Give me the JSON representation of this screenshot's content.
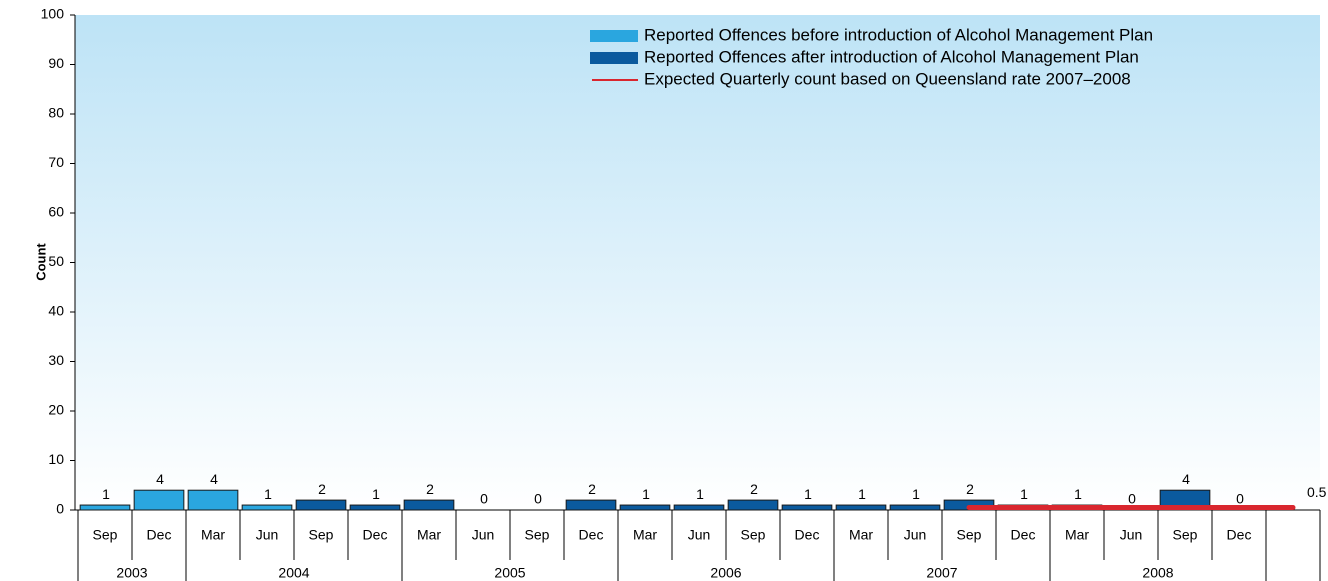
{
  "chart_data": {
    "type": "bar",
    "y_label": "Count",
    "categories": [
      "Sep",
      "Dec",
      "Mar",
      "Jun",
      "Sep",
      "Dec",
      "Mar",
      "Jun",
      "Sep",
      "Dec",
      "Mar",
      "Jun",
      "Sep",
      "Dec",
      "Mar",
      "Jun",
      "Sep",
      "Dec",
      "Mar",
      "Jun",
      "Sep",
      "Dec",
      null
    ],
    "year_groups": [
      {
        "label": "2003",
        "count": 2
      },
      {
        "label": "2004",
        "count": 4
      },
      {
        "label": "2005",
        "count": 4
      },
      {
        "label": "2006",
        "count": 4
      },
      {
        "label": "2007",
        "count": 4
      },
      {
        "label": "2008",
        "count": 4
      }
    ],
    "series": [
      {
        "name": "Reported Offences before introduction of Alcohol Management Plan",
        "color": "#2aa6df",
        "kind": "bar",
        "values": [
          1,
          4,
          4,
          1,
          null,
          null,
          null,
          null,
          null,
          null,
          null,
          null,
          null,
          null,
          null,
          null,
          null,
          null,
          null,
          null,
          null,
          null,
          null
        ]
      },
      {
        "name": "Reported Offences  after introduction of Alcohol Management Plan",
        "color": "#0b5a9e",
        "kind": "bar",
        "values": [
          null,
          null,
          null,
          null,
          2,
          1,
          2,
          0,
          0,
          2,
          1,
          1,
          2,
          1,
          1,
          1,
          2,
          1,
          1,
          0,
          4,
          0,
          null
        ]
      },
      {
        "name": "Expected Quarterly count based on Queensland rate 2007–2008",
        "color": "#d9262e",
        "kind": "line",
        "values": [
          null,
          null,
          null,
          null,
          null,
          null,
          null,
          null,
          null,
          null,
          null,
          null,
          null,
          null,
          null,
          null,
          0.5,
          0.5,
          0.5,
          0.5,
          0.5,
          0.5,
          0.5
        ]
      }
    ],
    "ylim": [
      0,
      100
    ],
    "yticks": [
      0,
      10,
      20,
      30,
      40,
      50,
      60,
      70,
      80,
      90,
      100
    ],
    "grid": false,
    "legend": "upper right"
  }
}
